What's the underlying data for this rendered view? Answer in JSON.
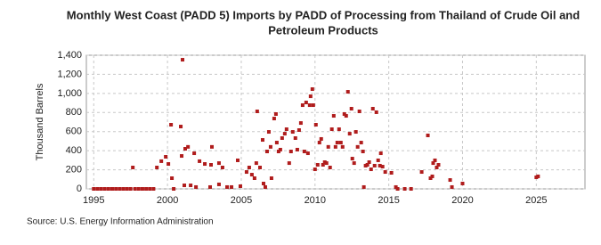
{
  "chart_data": {
    "type": "scatter",
    "title": [
      "Monthly West Coast (PADD 5) Imports by PADD of Processing from Thailand of Crude Oil and",
      "Petroleum Products"
    ],
    "y_label": "Thousand Barrels",
    "source": "Source: U.S. Energy Information Administration",
    "xlim": [
      1994.5,
      2028.3
    ],
    "xticks": [
      1995,
      2000,
      2005,
      2010,
      2015,
      2020,
      2025
    ],
    "ylim": [
      0,
      1400
    ],
    "yticks": [
      0,
      200,
      400,
      600,
      800,
      {
        "value": 1000,
        "label": "1,000"
      },
      {
        "value": 1200,
        "label": "1,200"
      },
      {
        "value": 1400,
        "label": "1,400"
      }
    ],
    "grid": true,
    "color": "#b01c1c",
    "x": [
      1995.0,
      1995.25,
      1995.5,
      1995.75,
      1996.0,
      1996.25,
      1996.5,
      1996.75,
      1997.0,
      1997.25,
      1997.5,
      1997.65,
      1997.8,
      1998.05,
      1998.3,
      1998.55,
      1998.8,
      1999.05,
      1999.28,
      1999.58,
      1999.88,
      2000.06,
      2000.24,
      2000.3,
      2000.42,
      2000.9,
      2001.02,
      2000.96,
      2001.2,
      2001.39,
      2001.14,
      2001.57,
      2001.81,
      2001.93,
      2002.17,
      2002.53,
      2002.95,
      2003.01,
      2003.49,
      2003.49,
      2003.73,
      2002.89,
      2004.04,
      2004.34,
      2004.76,
      2004.94,
      2005.36,
      2005.54,
      2005.72,
      2005.9,
      2006.02,
      2006.08,
      2006.27,
      2006.45,
      2006.51,
      2006.63,
      2006.75,
      2006.87,
      2006.99,
      2007.05,
      2007.23,
      2007.35,
      2007.41,
      2007.53,
      2007.65,
      2007.77,
      2007.95,
      2008.07,
      2008.25,
      2008.37,
      2008.49,
      2008.67,
      2008.8,
      2008.92,
      2009.04,
      2009.16,
      2009.28,
      2009.4,
      2009.52,
      2009.64,
      2009.7,
      2009.82,
      2009.88,
      2010.0,
      2010.06,
      2010.18,
      2010.3,
      2010.42,
      2010.54,
      2010.66,
      2010.78,
      2010.9,
      2011.02,
      2011.14,
      2011.27,
      2011.39,
      2011.51,
      2011.63,
      2011.75,
      2011.87,
      2011.99,
      2012.11,
      2012.23,
      2012.35,
      2012.47,
      2012.53,
      2012.65,
      2012.77,
      2012.89,
      2013.01,
      2013.13,
      2013.25,
      2013.31,
      2013.43,
      2013.55,
      2013.67,
      2013.8,
      2013.92,
      2014.04,
      2014.16,
      2014.28,
      2014.4,
      2014.46,
      2014.58,
      2014.76,
      2015.18,
      2015.48,
      2015.6,
      2016.08,
      2016.51,
      2017.23,
      2017.65,
      2017.83,
      2017.95,
      2018.01,
      2018.13,
      2018.25,
      2018.37,
      2019.16,
      2019.28,
      2020.0,
      2025.0,
      2025.12
    ],
    "values": [
      0,
      0,
      0,
      0,
      0,
      0,
      0,
      0,
      0,
      0,
      0,
      224,
      0,
      0,
      0,
      0,
      0,
      0,
      224,
      290,
      336,
      261,
      672,
      112,
      0,
      653,
      1353,
      345,
      420,
      440,
      37,
      37,
      373,
      19,
      290,
      261,
      252,
      440,
      270,
      47,
      224,
      19,
      19,
      19,
      299,
      28,
      177,
      224,
      149,
      112,
      270,
      812,
      224,
      513,
      56,
      19,
      392,
      597,
      440,
      112,
      737,
      784,
      485,
      392,
      411,
      532,
      578,
      625,
      270,
      392,
      597,
      532,
      411,
      616,
      690,
      877,
      392,
      905,
      373,
      877,
      970,
      1045,
      877,
      205,
      672,
      252,
      485,
      523,
      252,
      280,
      270,
      440,
      224,
      625,
      765,
      440,
      485,
      625,
      485,
      440,
      784,
      765,
      1017,
      578,
      840,
      317,
      270,
      597,
      440,
      812,
      485,
      392,
      19,
      243,
      252,
      280,
      205,
      840,
      243,
      803,
      299,
      243,
      373,
      233,
      177,
      168,
      19,
      0,
      0,
      0,
      177,
      560,
      112,
      131,
      270,
      299,
      224,
      252,
      93,
      19,
      56,
      121,
      131
    ]
  }
}
